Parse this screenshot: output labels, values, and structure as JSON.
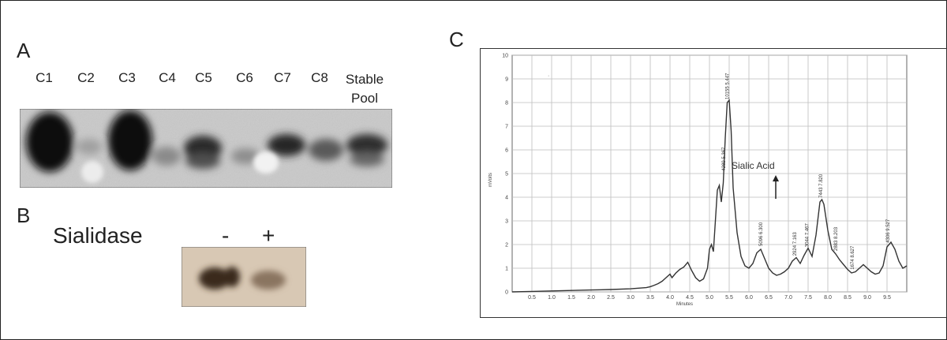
{
  "panels": {
    "a": {
      "letter": "A",
      "lanes": [
        "C1",
        "C2",
        "C3",
        "C4",
        "C5",
        "C6",
        "C7",
        "C8"
      ],
      "stable_line1": "Stable",
      "stable_line2": "Pool"
    },
    "b": {
      "letter": "B",
      "enzyme_label": "Sialidase",
      "minus": "-",
      "plus": "+"
    },
    "c": {
      "letter": "C",
      "annotation": "Sialic Acid",
      "x_label": "Minutes",
      "y_label": "mVolts"
    }
  },
  "chart_data": {
    "type": "line",
    "title": "",
    "xlabel": "Minutes",
    "ylabel": "mVolts",
    "xlim": [
      0,
      10
    ],
    "ylim": [
      0,
      10
    ],
    "x_ticks": [
      "0.5",
      "1.0",
      "1.5",
      "2.0",
      "2.5",
      "3.0",
      "3.5",
      "4.0",
      "4.5",
      "5.0",
      "5.5",
      "6.0",
      "6.5",
      "7.0",
      "7.5",
      "8.0",
      "8.5",
      "9.0",
      "9.5"
    ],
    "y_ticks": [
      "0",
      "1",
      "2",
      "3",
      "4",
      "5",
      "6",
      "7",
      "8",
      "9",
      "10"
    ],
    "grid": true,
    "series": [
      {
        "x": [
          0.0,
          0.5,
          1.0,
          1.5,
          2.0,
          2.5,
          3.0,
          3.4,
          3.5,
          3.6,
          3.7,
          3.8,
          3.9,
          4.0,
          4.05,
          4.15,
          4.25,
          4.35,
          4.45,
          4.55,
          4.65,
          4.75,
          4.85,
          4.95,
          5.0,
          5.05,
          5.1,
          5.15,
          5.2,
          5.25,
          5.3,
          5.35,
          5.4,
          5.45,
          5.5,
          5.55,
          5.6,
          5.7,
          5.8,
          5.9,
          6.0,
          6.1,
          6.2,
          6.3,
          6.4,
          6.5,
          6.6,
          6.7,
          6.8,
          6.9,
          7.0,
          7.1,
          7.2,
          7.3,
          7.4,
          7.5,
          7.6,
          7.7,
          7.8,
          7.85,
          7.9,
          8.0,
          8.1,
          8.2,
          8.3,
          8.4,
          8.5,
          8.6,
          8.7,
          8.8,
          8.9,
          9.0,
          9.1,
          9.2,
          9.3,
          9.4,
          9.5,
          9.6,
          9.7,
          9.8,
          9.9,
          10.0
        ],
        "y": [
          0.0,
          0.02,
          0.04,
          0.06,
          0.08,
          0.1,
          0.13,
          0.18,
          0.22,
          0.28,
          0.35,
          0.45,
          0.6,
          0.75,
          0.6,
          0.8,
          0.95,
          1.05,
          1.25,
          0.9,
          0.6,
          0.45,
          0.55,
          1.0,
          1.8,
          2.0,
          1.7,
          3.0,
          4.3,
          4.5,
          3.8,
          4.6,
          6.5,
          8.0,
          8.1,
          6.8,
          4.4,
          2.5,
          1.5,
          1.1,
          1.0,
          1.2,
          1.65,
          1.8,
          1.4,
          1.0,
          0.8,
          0.7,
          0.75,
          0.85,
          1.0,
          1.3,
          1.45,
          1.2,
          1.55,
          1.85,
          1.5,
          2.4,
          3.8,
          3.9,
          3.7,
          2.6,
          1.8,
          1.6,
          1.35,
          1.15,
          0.95,
          0.8,
          0.85,
          1.0,
          1.15,
          1.0,
          0.85,
          0.75,
          0.8,
          1.1,
          1.9,
          2.1,
          1.8,
          1.3,
          1.0,
          1.1
        ]
      }
    ],
    "peak_labels": [
      {
        "x": 5.36,
        "text": "4289 5.367"
      },
      {
        "x": 5.45,
        "text": "10155 5.447"
      },
      {
        "x": 6.3,
        "text": "5096 6.300"
      },
      {
        "x": 7.16,
        "text": "2924 7.163"
      },
      {
        "x": 7.47,
        "text": "3044 7.467"
      },
      {
        "x": 7.82,
        "text": "7443 7.820"
      },
      {
        "x": 8.2,
        "text": "2883 8.203"
      },
      {
        "x": 8.62,
        "text": "1674 8.627"
      },
      {
        "x": 9.52,
        "text": "4306 9.527"
      }
    ]
  }
}
